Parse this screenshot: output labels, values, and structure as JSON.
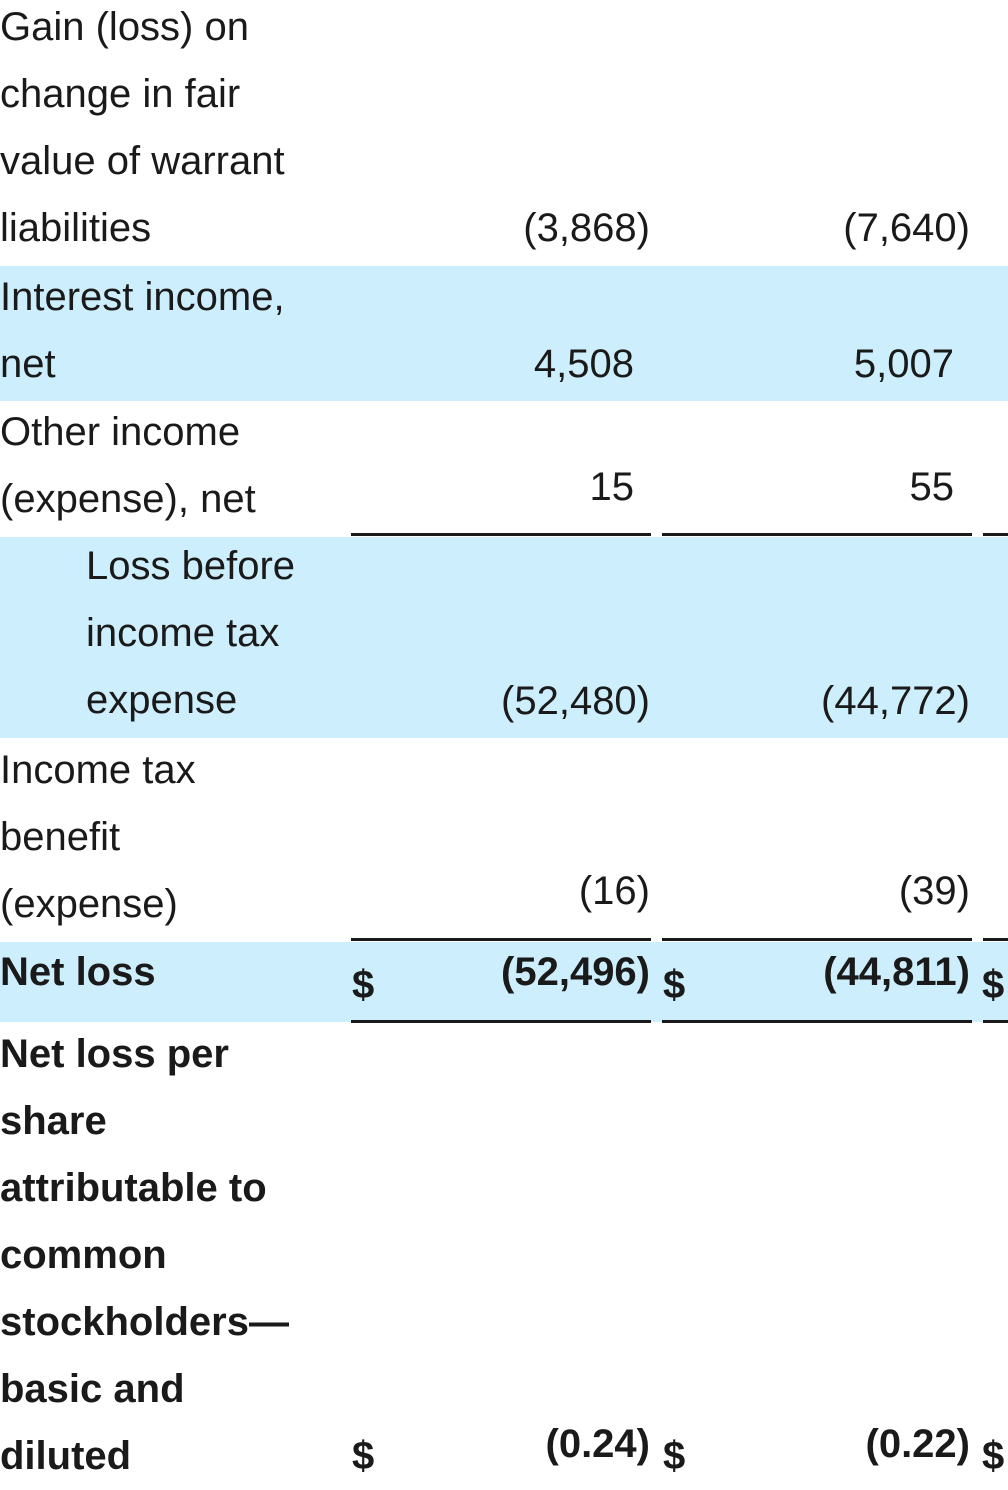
{
  "rows": [
    {
      "label_lines": [
        "Gain (loss) on",
        "change in fair",
        "value of warrant",
        "liabilities"
      ],
      "col1": "(3,868)",
      "col2": "(7,640)"
    },
    {
      "label_lines": [
        "Interest income,",
        "net"
      ],
      "col1": "4,508",
      "col2": "5,007"
    },
    {
      "label_lines": [
        "Other income",
        "(expense), net"
      ],
      "col1": "15",
      "col2": "55"
    },
    {
      "label_lines": [
        "Loss before",
        "income tax",
        "expense"
      ],
      "col1": "(52,480)",
      "col2": "(44,772)"
    },
    {
      "label_lines": [
        "Income tax",
        "benefit",
        "(expense)"
      ],
      "col1": "(16)",
      "col2": "(39)"
    },
    {
      "label_lines": [
        "Net loss"
      ],
      "col1": "(52,496)",
      "col2": "(44,811)"
    },
    {
      "label_lines": [
        "Net loss per",
        "share",
        "attributable to",
        "common",
        "stockholders—",
        "basic and",
        "diluted"
      ],
      "col1": "(0.24)",
      "col2": "(0.22)"
    }
  ],
  "currency_symbol": "$"
}
